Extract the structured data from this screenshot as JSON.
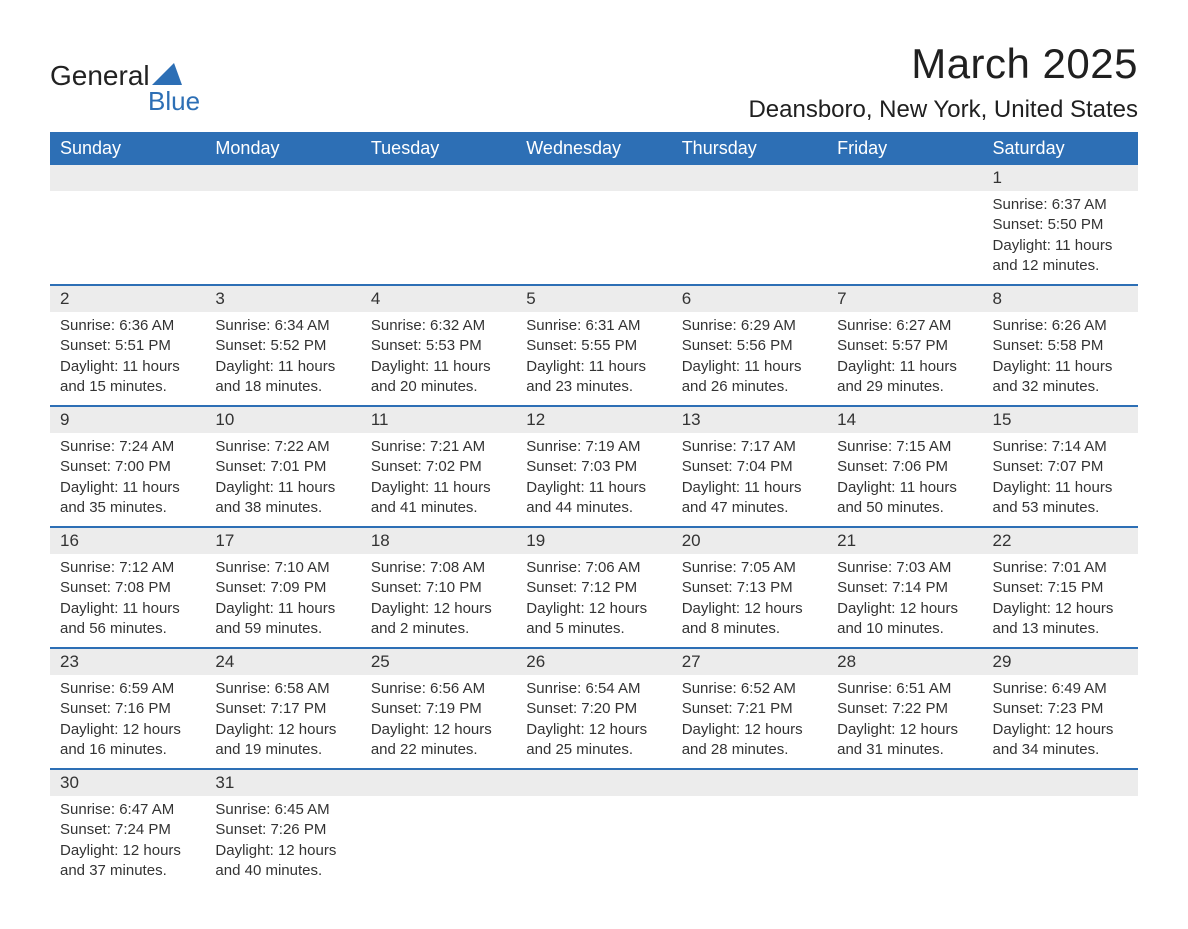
{
  "logo": {
    "text_main": "General",
    "text_sub": "Blue",
    "sail_color": "#2d6fb5"
  },
  "title": "March 2025",
  "location": "Deansboro, New York, United States",
  "colors": {
    "header_bg": "#2d6fb5",
    "header_text": "#ffffff",
    "daynum_bg": "#ececec",
    "row_border": "#2d6fb5",
    "body_text": "#333333",
    "page_bg": "#ffffff"
  },
  "day_headers": [
    "Sunday",
    "Monday",
    "Tuesday",
    "Wednesday",
    "Thursday",
    "Friday",
    "Saturday"
  ],
  "weeks": [
    [
      null,
      null,
      null,
      null,
      null,
      null,
      {
        "n": "1",
        "sunrise": "6:37 AM",
        "sunset": "5:50 PM",
        "daylight": "11 hours and 12 minutes."
      }
    ],
    [
      {
        "n": "2",
        "sunrise": "6:36 AM",
        "sunset": "5:51 PM",
        "daylight": "11 hours and 15 minutes."
      },
      {
        "n": "3",
        "sunrise": "6:34 AM",
        "sunset": "5:52 PM",
        "daylight": "11 hours and 18 minutes."
      },
      {
        "n": "4",
        "sunrise": "6:32 AM",
        "sunset": "5:53 PM",
        "daylight": "11 hours and 20 minutes."
      },
      {
        "n": "5",
        "sunrise": "6:31 AM",
        "sunset": "5:55 PM",
        "daylight": "11 hours and 23 minutes."
      },
      {
        "n": "6",
        "sunrise": "6:29 AM",
        "sunset": "5:56 PM",
        "daylight": "11 hours and 26 minutes."
      },
      {
        "n": "7",
        "sunrise": "6:27 AM",
        "sunset": "5:57 PM",
        "daylight": "11 hours and 29 minutes."
      },
      {
        "n": "8",
        "sunrise": "6:26 AM",
        "sunset": "5:58 PM",
        "daylight": "11 hours and 32 minutes."
      }
    ],
    [
      {
        "n": "9",
        "sunrise": "7:24 AM",
        "sunset": "7:00 PM",
        "daylight": "11 hours and 35 minutes."
      },
      {
        "n": "10",
        "sunrise": "7:22 AM",
        "sunset": "7:01 PM",
        "daylight": "11 hours and 38 minutes."
      },
      {
        "n": "11",
        "sunrise": "7:21 AM",
        "sunset": "7:02 PM",
        "daylight": "11 hours and 41 minutes."
      },
      {
        "n": "12",
        "sunrise": "7:19 AM",
        "sunset": "7:03 PM",
        "daylight": "11 hours and 44 minutes."
      },
      {
        "n": "13",
        "sunrise": "7:17 AM",
        "sunset": "7:04 PM",
        "daylight": "11 hours and 47 minutes."
      },
      {
        "n": "14",
        "sunrise": "7:15 AM",
        "sunset": "7:06 PM",
        "daylight": "11 hours and 50 minutes."
      },
      {
        "n": "15",
        "sunrise": "7:14 AM",
        "sunset": "7:07 PM",
        "daylight": "11 hours and 53 minutes."
      }
    ],
    [
      {
        "n": "16",
        "sunrise": "7:12 AM",
        "sunset": "7:08 PM",
        "daylight": "11 hours and 56 minutes."
      },
      {
        "n": "17",
        "sunrise": "7:10 AM",
        "sunset": "7:09 PM",
        "daylight": "11 hours and 59 minutes."
      },
      {
        "n": "18",
        "sunrise": "7:08 AM",
        "sunset": "7:10 PM",
        "daylight": "12 hours and 2 minutes."
      },
      {
        "n": "19",
        "sunrise": "7:06 AM",
        "sunset": "7:12 PM",
        "daylight": "12 hours and 5 minutes."
      },
      {
        "n": "20",
        "sunrise": "7:05 AM",
        "sunset": "7:13 PM",
        "daylight": "12 hours and 8 minutes."
      },
      {
        "n": "21",
        "sunrise": "7:03 AM",
        "sunset": "7:14 PM",
        "daylight": "12 hours and 10 minutes."
      },
      {
        "n": "22",
        "sunrise": "7:01 AM",
        "sunset": "7:15 PM",
        "daylight": "12 hours and 13 minutes."
      }
    ],
    [
      {
        "n": "23",
        "sunrise": "6:59 AM",
        "sunset": "7:16 PM",
        "daylight": "12 hours and 16 minutes."
      },
      {
        "n": "24",
        "sunrise": "6:58 AM",
        "sunset": "7:17 PM",
        "daylight": "12 hours and 19 minutes."
      },
      {
        "n": "25",
        "sunrise": "6:56 AM",
        "sunset": "7:19 PM",
        "daylight": "12 hours and 22 minutes."
      },
      {
        "n": "26",
        "sunrise": "6:54 AM",
        "sunset": "7:20 PM",
        "daylight": "12 hours and 25 minutes."
      },
      {
        "n": "27",
        "sunrise": "6:52 AM",
        "sunset": "7:21 PM",
        "daylight": "12 hours and 28 minutes."
      },
      {
        "n": "28",
        "sunrise": "6:51 AM",
        "sunset": "7:22 PM",
        "daylight": "12 hours and 31 minutes."
      },
      {
        "n": "29",
        "sunrise": "6:49 AM",
        "sunset": "7:23 PM",
        "daylight": "12 hours and 34 minutes."
      }
    ],
    [
      {
        "n": "30",
        "sunrise": "6:47 AM",
        "sunset": "7:24 PM",
        "daylight": "12 hours and 37 minutes."
      },
      {
        "n": "31",
        "sunrise": "6:45 AM",
        "sunset": "7:26 PM",
        "daylight": "12 hours and 40 minutes."
      },
      null,
      null,
      null,
      null,
      null
    ]
  ],
  "labels": {
    "sunrise": "Sunrise: ",
    "sunset": "Sunset: ",
    "daylight": "Daylight: "
  }
}
